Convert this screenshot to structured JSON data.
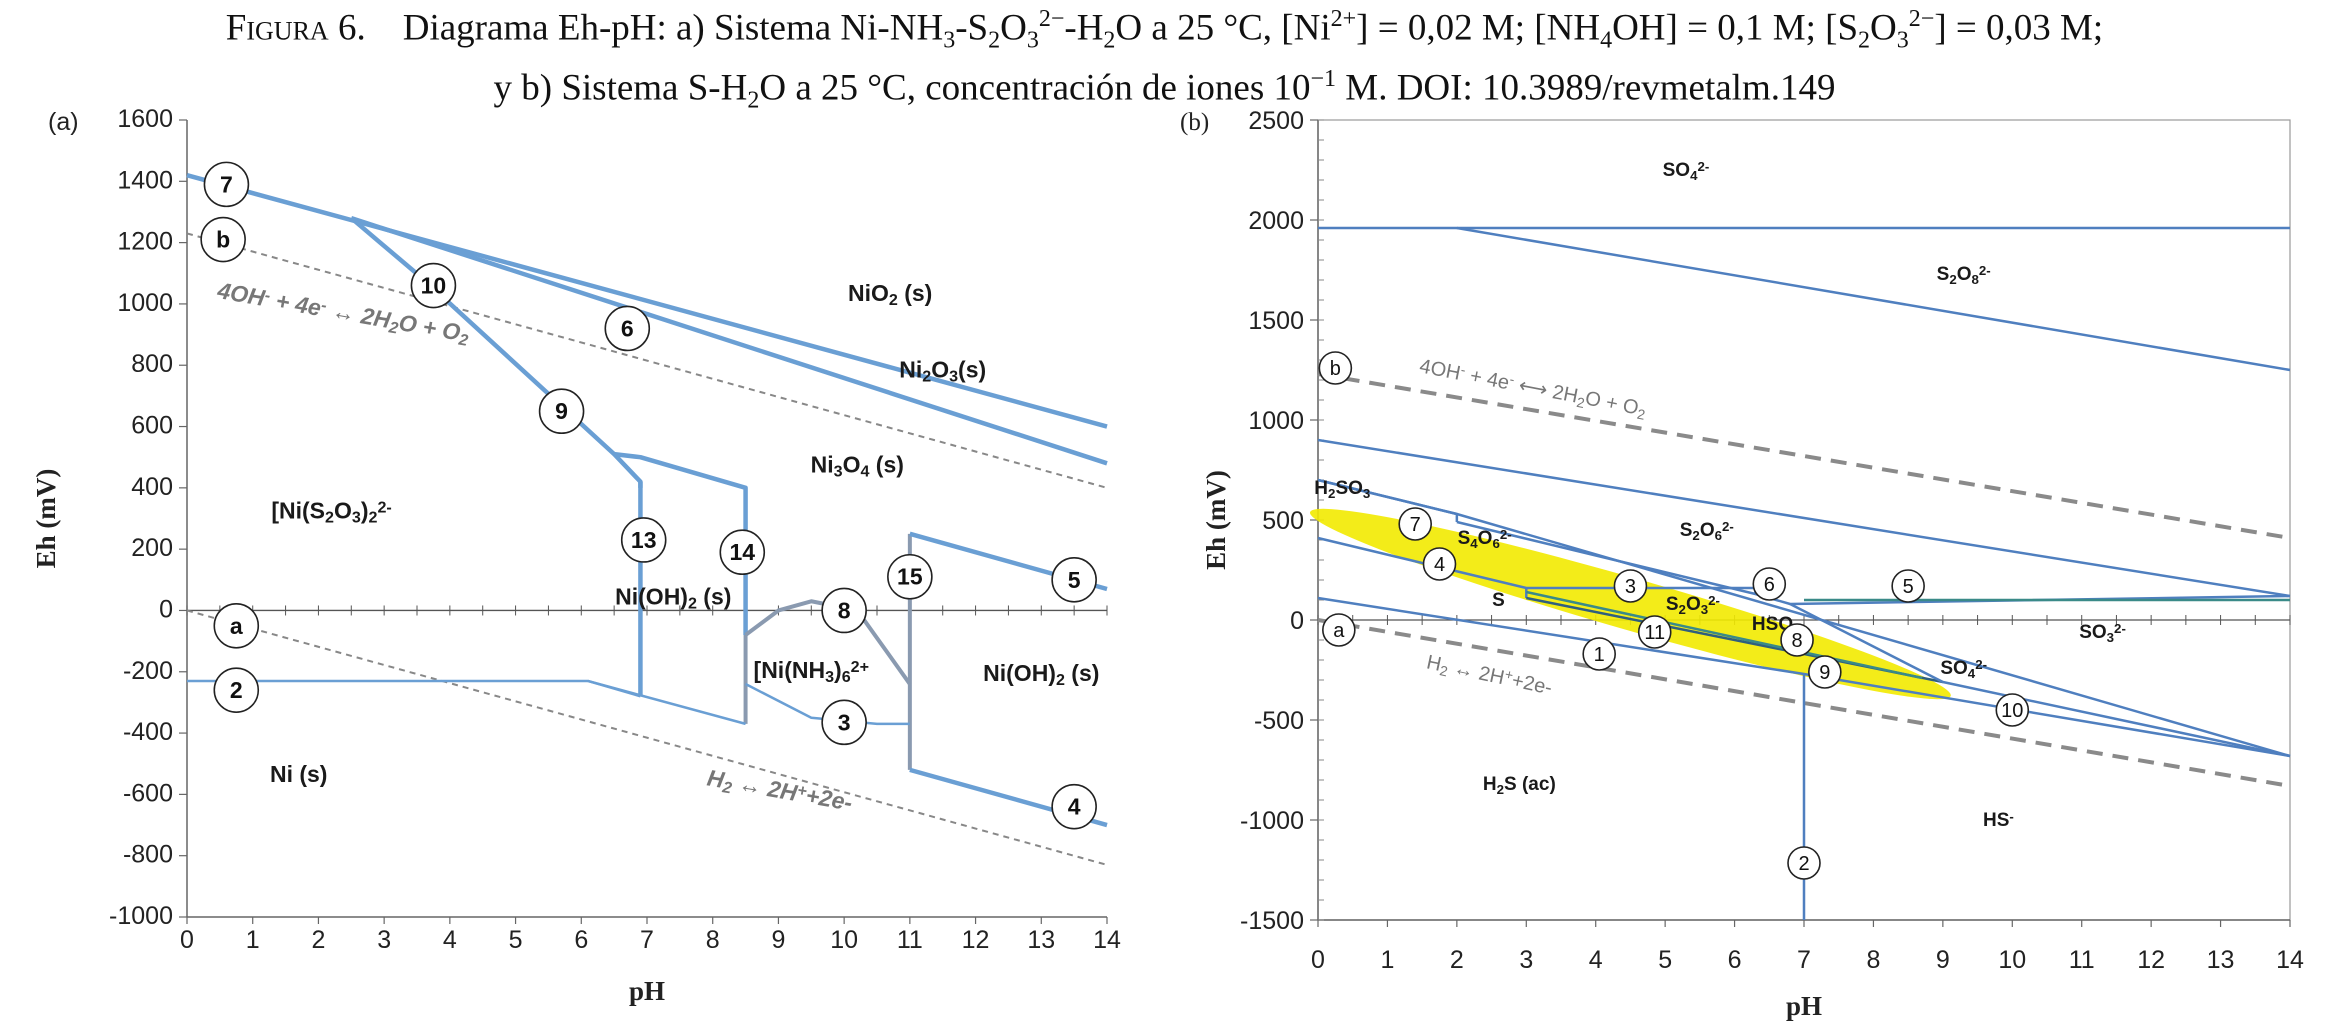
{
  "caption": {
    "figure_label": "Figura 6.",
    "line1_parts": [
      "Diagrama Eh-pH: a) Sistema Ni-NH",
      "3",
      "-S",
      "2",
      "O",
      "3",
      "2−",
      "-H",
      "2",
      "O a 25 °C, [Ni",
      "2+",
      "] = 0,02 M; [NH",
      "4",
      "OH] = 0,1 M; [S",
      "2",
      "O",
      "3",
      "2−",
      "] = 0,03 M;"
    ],
    "line2_parts": [
      "y b) Sistema S-H",
      "2",
      "O a 25 °C, concentración de iones 10",
      "−1",
      " M. DOI: 10.3989/revmetalm.149"
    ]
  },
  "chart_data": [
    {
      "panel": "(a)",
      "type": "line",
      "xlabel": "pH",
      "ylabel": "Eh (mV)",
      "xlim": [
        0,
        14
      ],
      "ylim": [
        -1000,
        1600
      ],
      "xticks": [
        "0",
        "1",
        "2",
        "3",
        "4",
        "5",
        "6",
        "7",
        "8",
        "9",
        "10",
        "11",
        "12",
        "13",
        "14"
      ],
      "yticks": [
        "1600",
        "1400",
        "1200",
        "1000",
        "800",
        "600",
        "400",
        "200",
        "0",
        "-200",
        "-400",
        "-600",
        "-800",
        "-1000"
      ],
      "boundary_color": "#6a9fd4",
      "water_color": "#888888",
      "boundaries": [
        {
          "id": "7",
          "points": [
            [
              0,
              1420
            ],
            [
              14,
              600
            ]
          ]
        },
        {
          "id": "6",
          "points": [
            [
              2.5,
              1280
            ],
            [
              14,
              480
            ]
          ]
        },
        {
          "id": "10",
          "points": [
            [
              2.5,
              1280
            ],
            [
              3.6,
              1080
            ]
          ]
        },
        {
          "id": "9",
          "points": [
            [
              3.6,
              1080
            ],
            [
              6.5,
              510
            ],
            [
              6.9,
              420
            ],
            [
              6.9,
              400
            ]
          ]
        },
        {
          "id": "13",
          "points": [
            [
              6.9,
              420
            ],
            [
              6.9,
              -280
            ]
          ]
        },
        {
          "id": "14a",
          "points": [
            [
              6.5,
              510
            ],
            [
              6.9,
              500
            ],
            [
              8.5,
              400
            ],
            [
              8.5,
              -80
            ]
          ]
        },
        {
          "id": "14b",
          "points": [
            [
              8.5,
              -80
            ],
            [
              8.5,
              -370
            ]
          ]
        },
        {
          "id": "15",
          "points": [
            [
              11,
              250
            ],
            [
              11,
              -520
            ]
          ]
        },
        {
          "id": "5",
          "points": [
            [
              11,
              250
            ],
            [
              14,
              70
            ]
          ]
        },
        {
          "id": "4",
          "points": [
            [
              11,
              -520
            ],
            [
              14,
              -700
            ]
          ]
        },
        {
          "id": "2",
          "points": [
            [
              0,
              -230
            ],
            [
              6.1,
              -230
            ],
            [
              6.9,
              -280
            ]
          ]
        },
        {
          "id": "ni_low",
          "points": [
            [
              6.1,
              -230
            ],
            [
              8.5,
              -370
            ]
          ]
        },
        {
          "id": "3",
          "points": [
            [
              8.5,
              -240
            ],
            [
              9.5,
              -350
            ],
            [
              10.5,
              -370
            ],
            [
              11,
              -370
            ]
          ]
        },
        {
          "id": "8",
          "points": [
            [
              8.5,
              -80
            ],
            [
              9.0,
              0
            ],
            [
              9.5,
              30
            ],
            [
              10.2,
              0
            ],
            [
              11,
              -240
            ]
          ]
        }
      ],
      "water_lines": [
        {
          "id": "b",
          "points": [
            [
              0,
              1230
            ],
            [
              14,
              400
            ]
          ]
        },
        {
          "id": "a",
          "points": [
            [
              0,
              0
            ],
            [
              14,
              -830
            ]
          ]
        }
      ],
      "markers": [
        {
          "label": "7",
          "x": 0.6,
          "y": 1390
        },
        {
          "label": "b",
          "x": 0.55,
          "y": 1210
        },
        {
          "label": "10",
          "x": 3.75,
          "y": 1060
        },
        {
          "label": "6",
          "x": 6.7,
          "y": 920
        },
        {
          "label": "9",
          "x": 5.7,
          "y": 650
        },
        {
          "label": "13",
          "x": 6.95,
          "y": 230
        },
        {
          "label": "14",
          "x": 8.45,
          "y": 190
        },
        {
          "label": "8",
          "x": 10.0,
          "y": 0
        },
        {
          "label": "15",
          "x": 11.0,
          "y": 110
        },
        {
          "label": "5",
          "x": 13.5,
          "y": 100
        },
        {
          "label": "a",
          "x": 0.75,
          "y": -50
        },
        {
          "label": "2",
          "x": 0.75,
          "y": -260
        },
        {
          "label": "3",
          "x": 10.0,
          "y": -365
        },
        {
          "label": "4",
          "x": 13.5,
          "y": -640
        }
      ],
      "regions": [
        {
          "label": "NiO",
          "sub": "2",
          "suffix": " (s)",
          "x": 10.7,
          "y": 1010
        },
        {
          "label": "Ni",
          "sub": "2",
          "mid": "O",
          "sub2": "3",
          "suffix": "(s)",
          "x": 11.5,
          "y": 760
        },
        {
          "label": "Ni",
          "sub": "3",
          "mid": "O",
          "sub2": "4",
          "suffix": " (s)",
          "x": 10.2,
          "y": 450
        },
        {
          "label": "[Ni(S",
          "sub": "2",
          "mid": "O",
          "sub2": "3",
          "suffix": ")",
          "sub3": "2",
          "sup": "2-",
          "x": 2.2,
          "y": 300
        },
        {
          "label": "Ni(OH)",
          "sub": "2",
          "suffix": " (s)",
          "x": 7.4,
          "y": 20
        },
        {
          "label": "[Ni(NH",
          "sub": "3",
          "suffix": ")",
          "sub3": "6",
          "sup": "2+",
          "x": 9.5,
          "y": -220
        },
        {
          "label": "Ni(OH)",
          "sub": "2",
          "suffix": " (s)",
          "x": 13.0,
          "y": -230
        },
        {
          "label": "Ni (s)",
          "x": 1.7,
          "y": -560
        }
      ],
      "equations": [
        {
          "text_parts": [
            "4OH",
            "-",
            " + 4e",
            "-",
            " ↔ 2H",
            "2",
            "O + O",
            "2"
          ],
          "x": 0.45,
          "y": 1020,
          "angle": 10
        },
        {
          "text_parts": [
            "H",
            "2",
            " ↔ 2H",
            "+",
            "+2e-"
          ],
          "x": 7.9,
          "y": -570,
          "angle": 10
        }
      ]
    },
    {
      "panel": "(b)",
      "type": "line",
      "xlabel": "pH",
      "ylabel": "Eh (mV)",
      "xlim": [
        0,
        14
      ],
      "ylim": [
        -1500,
        2500
      ],
      "xticks": [
        "0",
        "1",
        "2",
        "3",
        "4",
        "5",
        "6",
        "7",
        "8",
        "9",
        "10",
        "11",
        "12",
        "13",
        "14"
      ],
      "yticks": [
        "2500",
        "2000",
        "1500",
        "1000",
        "500",
        "0",
        "-500",
        "-1000",
        "-1500"
      ],
      "boundary_color": "#4f7fbf",
      "water_color": "#8a8a8a",
      "highlight_color": "#f2ea00",
      "boundaries": [
        {
          "id": "top",
          "points": [
            [
              0,
              1960
            ],
            [
              14,
              1960
            ]
          ]
        },
        {
          "id": "s2o8",
          "points": [
            [
              2.0,
              1960
            ],
            [
              14,
              1250
            ]
          ]
        },
        {
          "id": "s2o6_top",
          "points": [
            [
              0,
              900
            ],
            [
              14,
              120
            ]
          ]
        },
        {
          "id": "h2so3",
          "points": [
            [
              0,
              700
            ],
            [
              2.0,
              530
            ],
            [
              2.0,
              490
            ]
          ]
        },
        {
          "id": "7",
          "points": [
            [
              0,
              700
            ],
            [
              2.0,
              530
            ],
            [
              14,
              -680
            ]
          ]
        },
        {
          "id": "4",
          "points": [
            [
              0,
              410
            ],
            [
              3.0,
              160
            ],
            [
              6.3,
              160
            ],
            [
              6.3,
              130
            ]
          ]
        },
        {
          "id": "3",
          "points": [
            [
              3.0,
              160
            ],
            [
              3.0,
              110
            ]
          ]
        },
        {
          "id": "6",
          "points": [
            [
              2.0,
              490
            ],
            [
              6.3,
              130
            ],
            [
              6.8,
              80
            ],
            [
              14,
              120
            ]
          ]
        },
        {
          "id": "5",
          "points": [
            [
              7.0,
              100
            ],
            [
              14,
              100
            ]
          ],
          "color": "#3a8a88"
        },
        {
          "id": "1",
          "points": [
            [
              0,
              110
            ],
            [
              7.0,
              -270
            ],
            [
              14,
              -680
            ]
          ]
        },
        {
          "id": "2",
          "points": [
            [
              7.0,
              -270
            ],
            [
              7.0,
              -1500
            ]
          ]
        },
        {
          "id": "11",
          "points": [
            [
              3.0,
              110
            ],
            [
              9.0,
              -310
            ]
          ],
          "color": "#2f5f7f"
        },
        {
          "id": "9",
          "points": [
            [
              3.0,
              140
            ],
            [
              8.7,
              -290
            ]
          ],
          "color": "#3a8a88"
        },
        {
          "id": "10",
          "points": [
            [
              6.8,
              80
            ],
            [
              9.0,
              -310
            ],
            [
              14,
              -680
            ]
          ]
        }
      ],
      "water_lines": [
        {
          "id": "b",
          "points": [
            [
              0,
              1230
            ],
            [
              14,
              410
            ]
          ]
        },
        {
          "id": "a",
          "points": [
            [
              0,
              0
            ],
            [
              14,
              -830
            ]
          ]
        }
      ],
      "highlight_ellipse": {
        "cx": 4.5,
        "cy": 80,
        "rx_ph": 4.8,
        "ry_mv": 130,
        "angle": 16
      },
      "markers": [
        {
          "label": "b",
          "x": 0.25,
          "y": 1260
        },
        {
          "label": "7",
          "x": 1.4,
          "y": 480
        },
        {
          "label": "4",
          "x": 1.75,
          "y": 280
        },
        {
          "label": "3",
          "x": 4.5,
          "y": 170
        },
        {
          "label": "6",
          "x": 6.5,
          "y": 180
        },
        {
          "label": "5",
          "x": 8.5,
          "y": 170
        },
        {
          "label": "11",
          "x": 4.85,
          "y": -60
        },
        {
          "label": "8",
          "x": 6.9,
          "y": -100
        },
        {
          "label": "9",
          "x": 7.3,
          "y": -260
        },
        {
          "label": "a",
          "x": 0.3,
          "y": -50
        },
        {
          "label": "1",
          "x": 4.05,
          "y": -170
        },
        {
          "label": "10",
          "x": 10.0,
          "y": -450
        },
        {
          "label": "2",
          "x": 7.0,
          "y": -1215
        }
      ],
      "regions": [
        {
          "label": "SO",
          "sub": "4",
          "sup": "2-",
          "x": 5.3,
          "y": 2220
        },
        {
          "label": "S",
          "sub": "2",
          "mid": "O",
          "sub2": "8",
          "sup": "2-",
          "x": 9.3,
          "y": 1700
        },
        {
          "label": "H",
          "sub": "2",
          "mid": "SO",
          "sub2": "3",
          "x": 0.35,
          "y": 630
        },
        {
          "label": "S",
          "sub": "4",
          "mid": "O",
          "sub2": "6",
          "sup": "2-",
          "x": 2.4,
          "y": 380
        },
        {
          "label": "S",
          "sub": "2",
          "mid": "O",
          "sub2": "6",
          "sup": "2-",
          "x": 5.6,
          "y": 420
        },
        {
          "label": "S",
          "x": 2.6,
          "y": 70,
          "big": true
        },
        {
          "label": "S",
          "sub": "2",
          "mid": "O",
          "sub2": "3",
          "sup": "2-",
          "x": 5.4,
          "y": 50
        },
        {
          "label": "HSO",
          "sub": "4",
          "x": 6.6,
          "y": -50
        },
        {
          "label": "SO",
          "sub": "3",
          "sup": "2-",
          "x": 11.3,
          "y": -90
        },
        {
          "label": "SO",
          "sub": "4",
          "sup": "2-",
          "x": 9.3,
          "y": -270
        },
        {
          "label": "H",
          "sub": "2",
          "mid": "S (ac)",
          "x": 2.9,
          "y": -850
        },
        {
          "label": "HS",
          "sup": "-",
          "x": 9.8,
          "y": -1030
        }
      ],
      "equations": [
        {
          "text_parts": [
            "4OH",
            "-",
            " + 4e",
            "-",
            " ⟷ 2H",
            "2",
            "O + O",
            "2"
          ],
          "x": 1.45,
          "y": 1240,
          "angle": 11
        },
        {
          "text_parts": [
            "H",
            "2",
            " ↔ 2H",
            "+",
            "+2e-"
          ],
          "x": 1.55,
          "y": -240,
          "angle": 12
        }
      ]
    }
  ]
}
